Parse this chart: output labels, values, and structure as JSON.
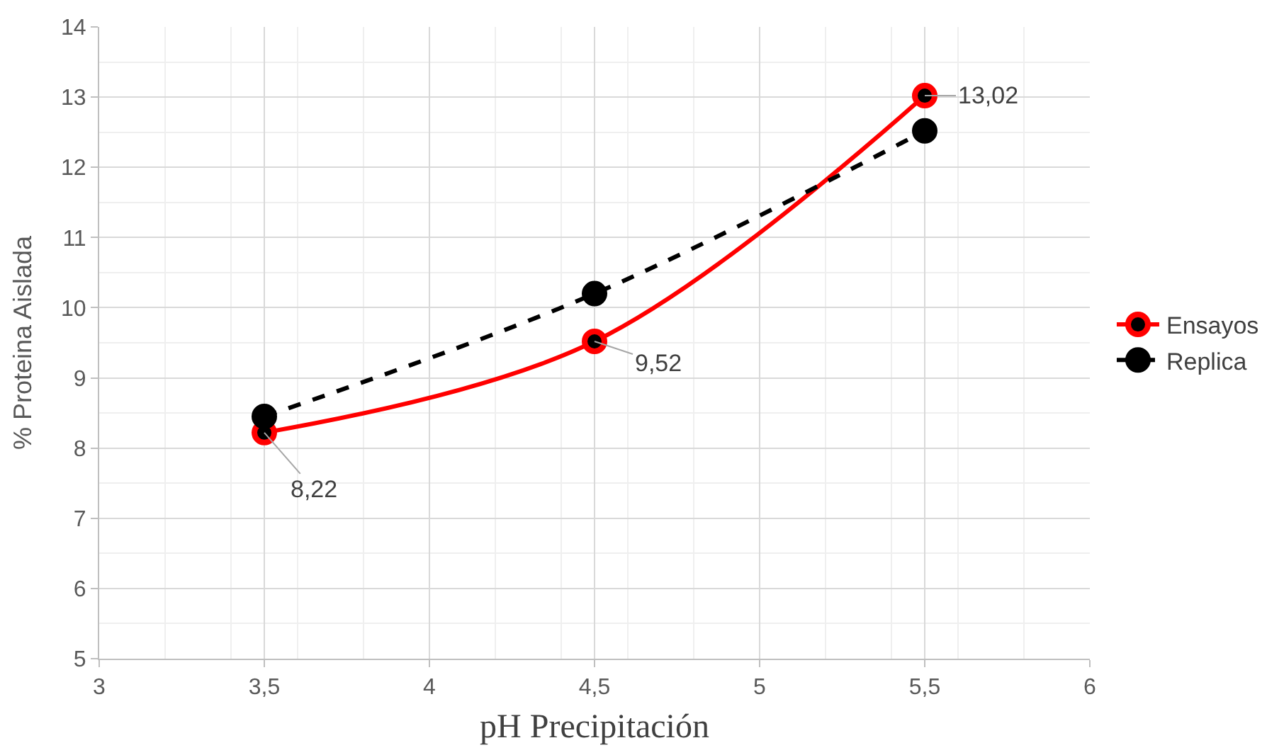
{
  "chart_data": {
    "type": "line",
    "xlabel": "pH Precipitación",
    "ylabel": "% Proteina Aislada",
    "x": [
      3.5,
      4.5,
      5.5
    ],
    "series": [
      {
        "name": "Ensayos",
        "color": "#ff0000",
        "values": [
          8.22,
          9.52,
          13.02
        ],
        "line_style": "solid",
        "value_labels": [
          "8,22",
          "9,52",
          "13,02"
        ]
      },
      {
        "name": "Replica",
        "color": "#000000",
        "values": [
          8.45,
          10.2,
          12.52
        ],
        "line_style": "dashed"
      }
    ],
    "xlim": [
      3,
      6
    ],
    "xticks": [
      3,
      {
        "value": 3.5,
        "label": "3,5"
      },
      4,
      {
        "value": 4.5,
        "label": "4,5"
      },
      5,
      {
        "value": 5.5,
        "label": "5,5"
      },
      6
    ],
    "ylim": [
      5,
      14
    ],
    "yticks": [
      5,
      6,
      7,
      8,
      9,
      10,
      11,
      12,
      13,
      14
    ],
    "grid": true,
    "legend": "right",
    "marker": "circle"
  }
}
